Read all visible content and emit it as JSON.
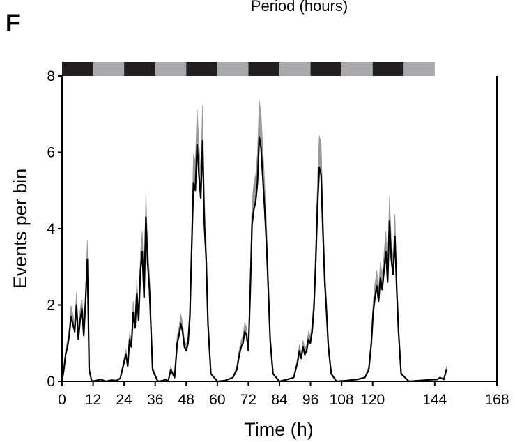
{
  "panel_label": "F",
  "caption": "Period (hours)",
  "colors": {
    "dark": "#231f20",
    "light": "#a7a9ac",
    "trace": "#000000",
    "sem": "#9a9a9a"
  },
  "chart_data": {
    "type": "line",
    "title": "",
    "xlabel": "Time (h)",
    "ylabel": "Events per bin",
    "xlim": [
      0,
      168
    ],
    "ylim": [
      0,
      8
    ],
    "x_ticks": [
      0,
      12,
      24,
      36,
      48,
      60,
      72,
      84,
      96,
      108,
      120,
      144,
      168
    ],
    "x_tick_labels": [
      "0",
      "12",
      "24",
      "36",
      "48",
      "60",
      "72",
      "84",
      "96",
      "108",
      "120",
      "144",
      "168"
    ],
    "y_ticks": [
      0,
      2,
      4,
      6,
      8
    ],
    "y_tick_labels": [
      "0",
      "2",
      "4",
      "6",
      "8"
    ],
    "light_dark_bar": [
      {
        "state": "dark",
        "start": 0,
        "end": 12
      },
      {
        "state": "light",
        "start": 12,
        "end": 24
      },
      {
        "state": "dark",
        "start": 24,
        "end": 36
      },
      {
        "state": "light",
        "start": 36,
        "end": 48
      },
      {
        "state": "dark",
        "start": 48,
        "end": 60
      },
      {
        "state": "light",
        "start": 60,
        "end": 72
      },
      {
        "state": "dark",
        "start": 72,
        "end": 84
      },
      {
        "state": "light",
        "start": 84,
        "end": 96
      },
      {
        "state": "dark",
        "start": 96,
        "end": 108
      },
      {
        "state": "light",
        "start": 108,
        "end": 120
      },
      {
        "state": "dark",
        "start": 120,
        "end": 132
      },
      {
        "state": "light",
        "start": 132,
        "end": 144
      }
    ],
    "series": [
      {
        "x": [
          0,
          0.7,
          1.4,
          2.1,
          2.8,
          3.5,
          4.2,
          4.9,
          5.6,
          6.3,
          7.0,
          7.7,
          8.4,
          9.1,
          9.8,
          10.5,
          11.5,
          13,
          15,
          17,
          19,
          21,
          22.5,
          24,
          24.7,
          25.4,
          26.1,
          26.8,
          27.5,
          28.2,
          28.9,
          29.6,
          30.3,
          31.0,
          31.7,
          32.4,
          33.1,
          33.8,
          35,
          37,
          39,
          40,
          41,
          42,
          43.5,
          44.5,
          45.2,
          45.9,
          46.6,
          47.3,
          48.0,
          48.7,
          49.4,
          50.1,
          50.8,
          51.5,
          52.2,
          52.9,
          53.6,
          54.3,
          55.0,
          55.7,
          56.4,
          57.5,
          60,
          63,
          66,
          67.5,
          68.5,
          69.2,
          69.9,
          70.6,
          71.3,
          72.0,
          72.7,
          73.4,
          74.1,
          74.8,
          75.5,
          76.2,
          76.9,
          77.6,
          78.3,
          79.0,
          79.7,
          80.4,
          81.5,
          84,
          87,
          89.5,
          91,
          91.7,
          92.4,
          93.1,
          93.8,
          94.5,
          95.2,
          95.9,
          96.6,
          97.3,
          98.0,
          98.7,
          99.4,
          100.1,
          100.8,
          101.5,
          102.2,
          102.9,
          104,
          106,
          110,
          114,
          117,
          118.5,
          119.5,
          120.2,
          120.9,
          121.6,
          122.3,
          123.0,
          123.7,
          124.4,
          125.1,
          125.8,
          126.5,
          127.2,
          127.9,
          128.6,
          129.3,
          130.0,
          131,
          134,
          138,
          142,
          145,
          146,
          147.5,
          148.5
        ],
        "y": [
          0,
          0.3,
          0.7,
          0.9,
          1.2,
          1.7,
          1.5,
          1.3,
          2.0,
          1.1,
          1.6,
          1.9,
          1.2,
          2.1,
          3.2,
          0.3,
          0,
          0.02,
          0.05,
          0,
          0.03,
          0.02,
          0.08,
          0.5,
          0.7,
          0.4,
          1.1,
          0.9,
          1.8,
          1.4,
          2.3,
          1.6,
          2.9,
          3.4,
          2.2,
          4.3,
          3.1,
          2.4,
          0.3,
          0,
          0.02,
          0.05,
          0,
          0.3,
          0.1,
          1.0,
          1.2,
          1.5,
          1.3,
          0.9,
          0.8,
          1.0,
          1.7,
          3.5,
          5.2,
          5.0,
          6.2,
          5.4,
          4.8,
          6.3,
          4.1,
          3.2,
          1.5,
          0.2,
          0,
          0.02,
          0.1,
          0.3,
          0.7,
          0.9,
          1.0,
          1.3,
          1.2,
          0.8,
          2.3,
          4.1,
          4.5,
          4.7,
          5.2,
          6.4,
          6.1,
          5.3,
          4.5,
          3.6,
          2.4,
          1.1,
          0.2,
          0,
          0.05,
          0.1,
          0.5,
          0.8,
          0.6,
          0.9,
          0.7,
          0.8,
          1.1,
          1.0,
          1.3,
          1.9,
          3.1,
          4.6,
          5.6,
          5.4,
          3.9,
          2.6,
          1.8,
          0.9,
          0.2,
          0,
          0.02,
          0.05,
          0.1,
          0.3,
          1.0,
          1.8,
          2.2,
          2.5,
          2.1,
          2.7,
          2.4,
          2.9,
          3.4,
          2.6,
          4.2,
          3.2,
          2.8,
          3.8,
          2.4,
          1.3,
          0.2,
          0,
          0.02,
          0.04,
          0.05,
          0.1,
          0.05,
          0.3
        ]
      }
    ]
  }
}
